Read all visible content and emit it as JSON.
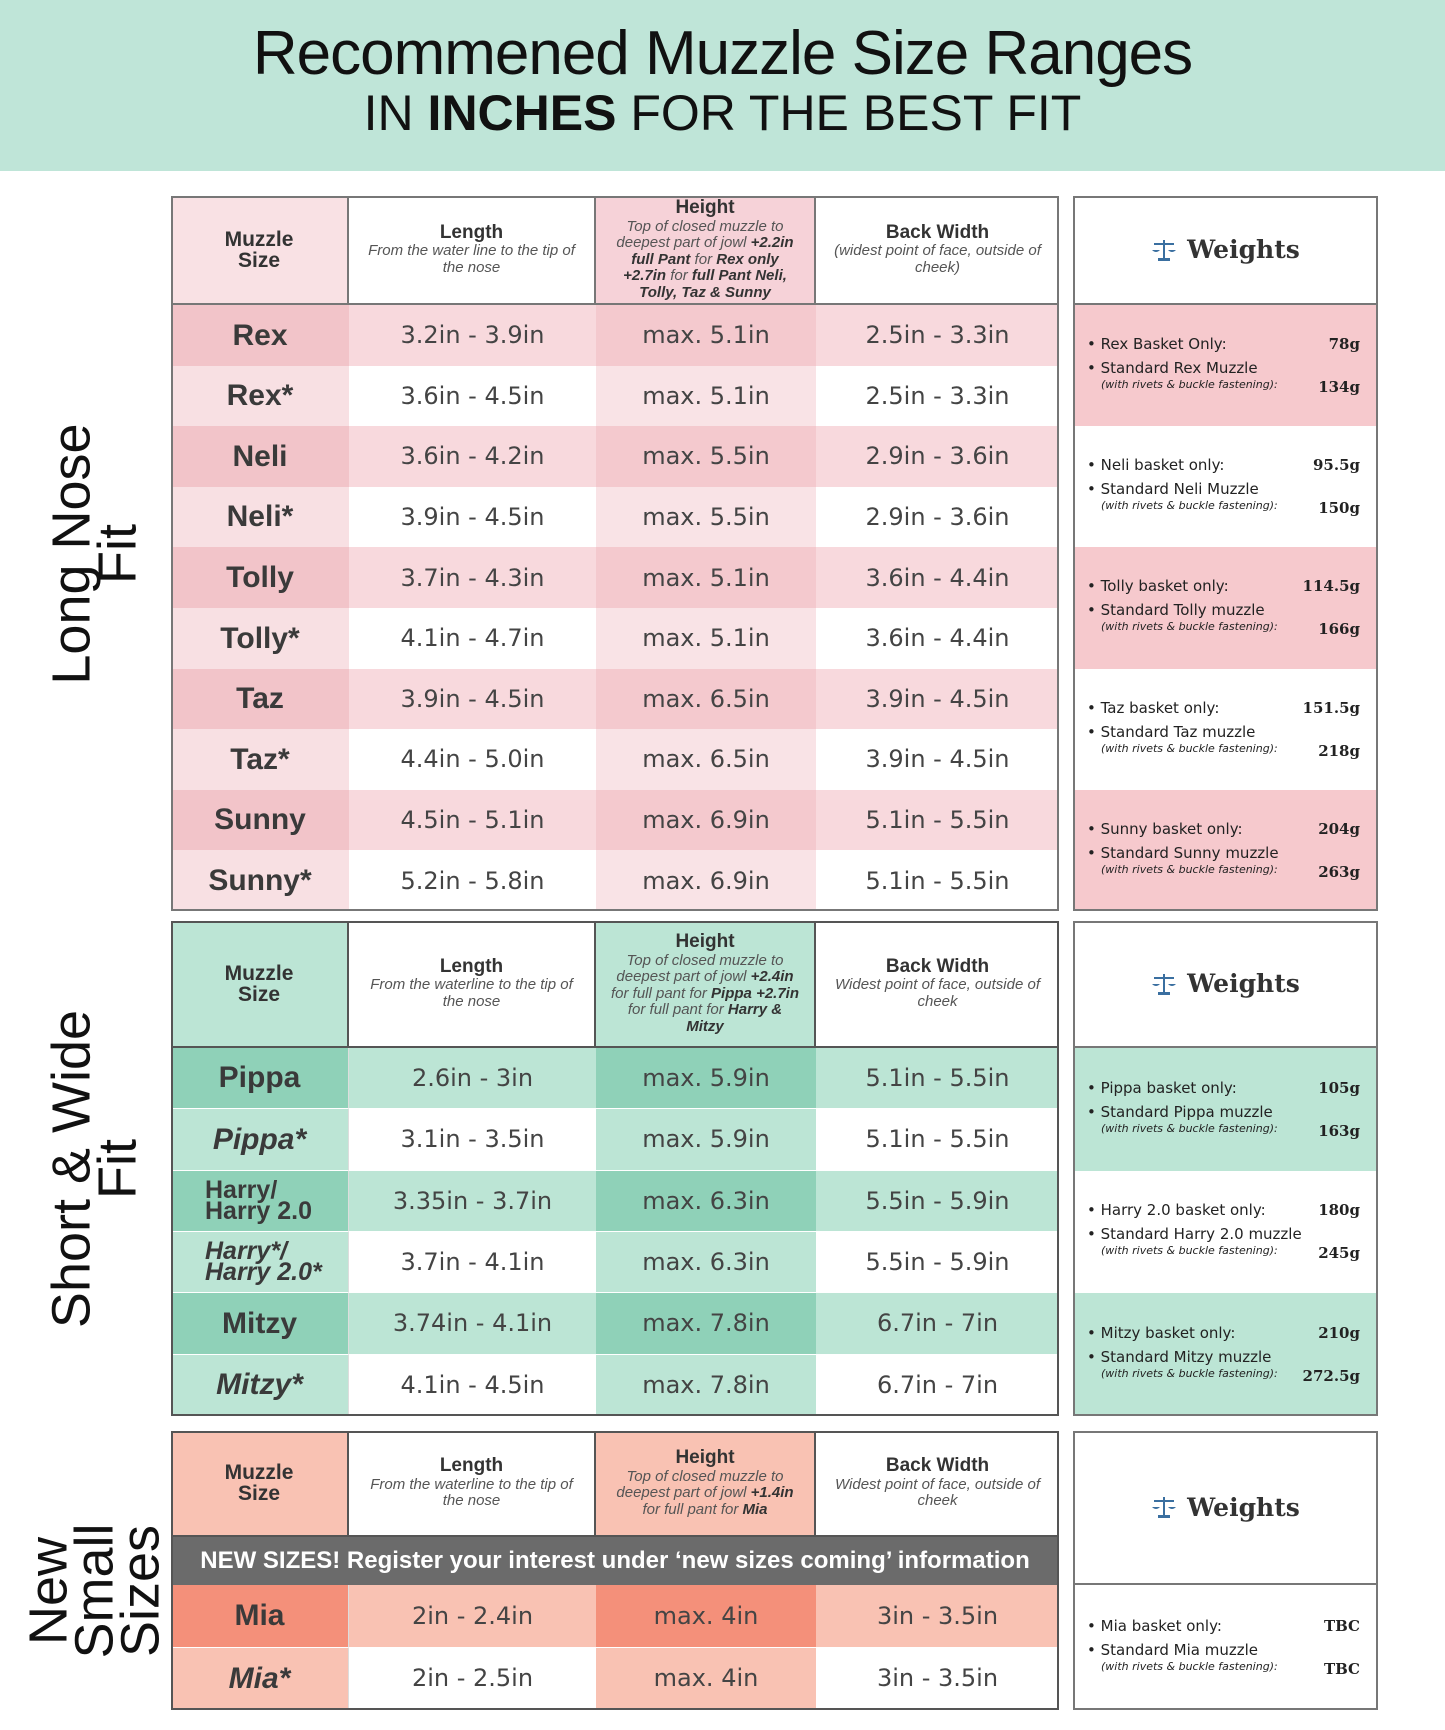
{
  "header": {
    "title": "Recommened Muzzle Size Ranges",
    "subtitle_pre": "IN",
    "subtitle_bold": "INCHES",
    "subtitle_post": "FOR THE BEST FIT"
  },
  "sections": [
    {
      "side_label": [
        "Long Nose",
        "Fit"
      ],
      "columns": {
        "size": "Muzzle\nSize",
        "length_title": "Length",
        "length_desc": "From the water line to the tip of the nose",
        "height_title": "Height",
        "height_desc": [
          {
            "text": "Top of closed muzzle to deepest part of jowl "
          },
          {
            "text": "+2.2in full Pant",
            "bold": true
          },
          {
            "text": " for "
          },
          {
            "text": "Rex only",
            "bold": true
          },
          {
            "text": " "
          },
          {
            "text": "+2.7in",
            "bold": true
          },
          {
            "text": " for "
          },
          {
            "text": "full Pant Neli, Tolly, Taz & Sunny",
            "bold": true
          }
        ],
        "back_title": "Back Width",
        "back_desc": "(widest point of face, outside of cheek)"
      },
      "rows": [
        [
          "Rex",
          "3.2in - 3.9in",
          "max. 5.1in",
          "2.5in - 3.3in"
        ],
        [
          "Rex*",
          "3.6in - 4.5in",
          "max. 5.1in",
          "2.5in - 3.3in"
        ],
        [
          "Neli",
          "3.6in - 4.2in",
          "max. 5.5in",
          "2.9in - 3.6in"
        ],
        [
          "Neli*",
          "3.9in - 4.5in",
          "max. 5.5in",
          "2.9in - 3.6in"
        ],
        [
          "Tolly",
          "3.7in - 4.3in",
          "max. 5.1in",
          "3.6in - 4.4in"
        ],
        [
          "Tolly*",
          "4.1in - 4.7in",
          "max. 5.1in",
          "3.6in - 4.4in"
        ],
        [
          "Taz",
          "3.9in - 4.5in",
          "max. 6.5in",
          "3.9in - 4.5in"
        ],
        [
          "Taz*",
          "4.4in - 5.0in",
          "max. 6.5in",
          "3.9in - 4.5in"
        ],
        [
          "Sunny",
          "4.5in - 5.1in",
          "max. 6.9in",
          "5.1in - 5.5in"
        ],
        [
          "Sunny*",
          "5.2in - 5.8in",
          "max. 6.9in",
          "5.1in - 5.5in"
        ]
      ],
      "weights_title": "Weights",
      "weights": [
        {
          "basket": "Rex Basket Only:",
          "basket_weight": "78g",
          "standard": "Standard Rex Muzzle",
          "note": "(with rivets & buckle fastening):",
          "standard_weight": "134g"
        },
        {
          "basket": "Neli basket only:",
          "basket_weight": "95.5g",
          "standard": "Standard Neli Muzzle",
          "note": "(with rivets & buckle fastening):",
          "standard_weight": "150g"
        },
        {
          "basket": "Tolly basket only:",
          "basket_weight": "114.5g",
          "standard": "Standard Tolly muzzle",
          "note": "(with rivets & buckle fastening):",
          "standard_weight": "166g"
        },
        {
          "basket": "Taz basket only:",
          "basket_weight": "151.5g",
          "standard": "Standard Taz muzzle",
          "note": "(with rivets & buckle fastening):",
          "standard_weight": "218g"
        },
        {
          "basket": "Sunny basket only:",
          "basket_weight": "204g",
          "standard": "Standard Sunny muzzle",
          "note": "(with rivets & buckle fastening):",
          "standard_weight": "263g"
        }
      ]
    },
    {
      "side_label": [
        "Short & Wide",
        "Fit"
      ],
      "columns": {
        "size": "Muzzle\nSize",
        "length_title": "Length",
        "length_desc": "From the waterline to the tip of the nose",
        "height_title": "Height",
        "height_desc": [
          {
            "text": "Top of closed muzzle to deepest part of jowl "
          },
          {
            "text": "+2.4in",
            "bold": true
          },
          {
            "text": " for full pant for "
          },
          {
            "text": "Pippa",
            "bold": true
          },
          {
            "text": " "
          },
          {
            "text": "+2.7in",
            "bold": true
          },
          {
            "text": " for full pant for "
          },
          {
            "text": "Harry & Mitzy",
            "bold": true
          }
        ],
        "back_title": "Back Width",
        "back_desc": "Widest point of face, outside of cheek"
      },
      "rows": [
        [
          "Pippa",
          "2.6in - 3in",
          "max. 5.9in",
          "5.1in - 5.5in"
        ],
        [
          "Pippa*",
          "3.1in - 3.5in",
          "max. 5.9in",
          "5.1in - 5.5in"
        ],
        [
          "Harry/\nHarry 2.0",
          "3.35in - 3.7in",
          "max. 6.3in",
          "5.5in - 5.9in"
        ],
        [
          "Harry*/\nHarry 2.0*",
          "3.7in - 4.1in",
          "max. 6.3in",
          "5.5in - 5.9in"
        ],
        [
          "Mitzy",
          "3.74in - 4.1in",
          "max. 7.8in",
          "6.7in - 7in"
        ],
        [
          "Mitzy*",
          "4.1in - 4.5in",
          "max. 7.8in",
          "6.7in - 7in"
        ]
      ],
      "weights_title": "Weights",
      "weights": [
        {
          "basket": "Pippa basket only:",
          "basket_weight": "105g",
          "standard": "Standard Pippa muzzle",
          "note": "(with rivets & buckle fastening):",
          "standard_weight": "163g"
        },
        {
          "basket": "Harry 2.0 basket only:",
          "basket_weight": "180g",
          "standard": "Standard Harry 2.0 muzzle",
          "note": "(with rivets & buckle fastening):",
          "standard_weight": "245g"
        },
        {
          "basket": "Mitzy basket only:",
          "basket_weight": "210g",
          "standard": "Standard Mitzy muzzle",
          "note": "(with rivets & buckle fastening):",
          "standard_weight": "272.5g"
        }
      ]
    },
    {
      "side_label": [
        "New",
        "Small",
        "Sizes"
      ],
      "columns": {
        "size": "Muzzle\nSize",
        "length_title": "Length",
        "length_desc": "From the waterline to the tip of the nose",
        "height_title": "Height",
        "height_desc": [
          {
            "text": "Top of closed muzzle to deepest part of jowl "
          },
          {
            "text": "+1.4in",
            "bold": true
          },
          {
            "text": " for full pant for "
          },
          {
            "text": "Mia",
            "bold": true
          }
        ],
        "back_title": "Back Width",
        "back_desc": "Widest point of face, outside of cheek"
      },
      "banner": "NEW SIZES! Register your interest under ‘new sizes coming’ information",
      "rows": [
        [
          "Mia",
          "2in - 2.4in",
          "max. 4in",
          "3in - 3.5in"
        ],
        [
          "Mia*",
          "2in - 2.5in",
          "max. 4in",
          "3in - 3.5in"
        ]
      ],
      "weights_title": "Weights",
      "weights": [
        {
          "basket": "Mia basket only:",
          "basket_weight": "TBC",
          "standard": "Standard Mia muzzle",
          "note": "(with rivets & buckle fastening):",
          "standard_weight": "TBC"
        }
      ]
    }
  ]
}
